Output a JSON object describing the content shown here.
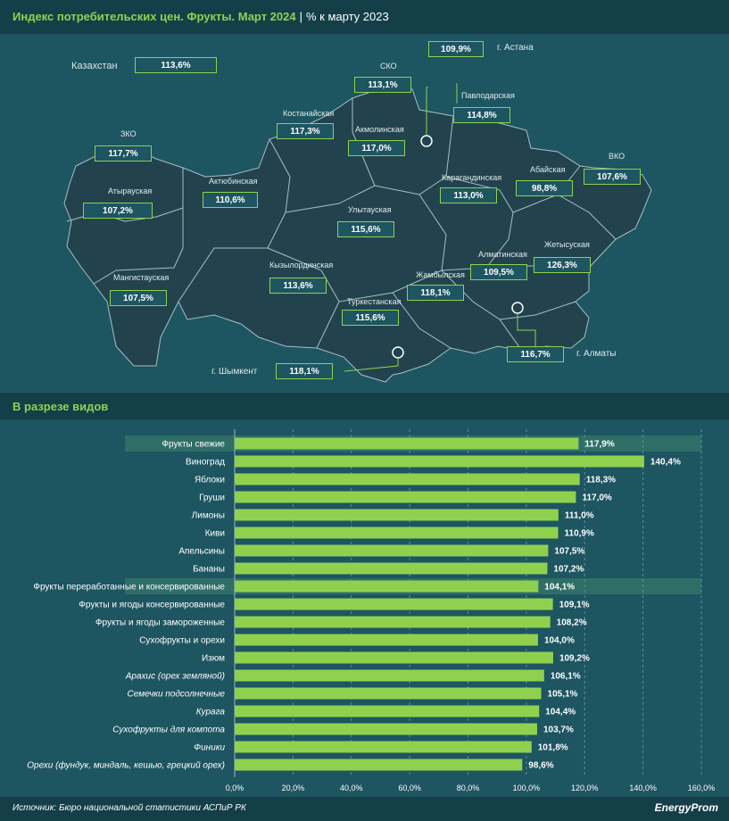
{
  "header": {
    "title": "Индекс потребительских цен. Фрукты. Март 2024",
    "separator": "|",
    "subtitle": "% к марту 2023"
  },
  "map": {
    "country_label": "Казахстан",
    "country_value": "113,6%",
    "regions": [
      {
        "name": "ЗКО",
        "value": "117,7%"
      },
      {
        "name": "Атырауская",
        "value": "107,2%"
      },
      {
        "name": "Мангистауская",
        "value": "107,5%"
      },
      {
        "name": "Актюбинская",
        "value": "110,6%"
      },
      {
        "name": "Костанайская",
        "value": "117,3%"
      },
      {
        "name": "СКО",
        "value": "113,1%"
      },
      {
        "name": "Акмолинская",
        "value": "117,0%"
      },
      {
        "name": "Павлодарская",
        "value": "114,8%"
      },
      {
        "name": "Карагандинская",
        "value": "113,0%"
      },
      {
        "name": "Улытауская",
        "value": "115,6%"
      },
      {
        "name": "Кызылординская",
        "value": "113,6%"
      },
      {
        "name": "Туркестанская",
        "value": "115,6%"
      },
      {
        "name": "Жамбылская",
        "value": "118,1%"
      },
      {
        "name": "Алматинская",
        "value": "109,5%"
      },
      {
        "name": "Жетысуская",
        "value": "126,3%"
      },
      {
        "name": "Абайская",
        "value": "98,8%"
      },
      {
        "name": "ВКО",
        "value": "107,6%"
      }
    ],
    "cities": [
      {
        "name": "г. Астана",
        "value": "109,9%"
      },
      {
        "name": "г. Алматы",
        "value": "116,7%"
      },
      {
        "name": "г. Шымкент",
        "value": "118,1%"
      }
    ]
  },
  "section": {
    "title": "В разрезе видов"
  },
  "chart_data": {
    "type": "bar",
    "orientation": "horizontal",
    "categories": [
      "Фрукты свежие",
      "Виноград",
      "Яблоки",
      "Груши",
      "Лимоны",
      "Киви",
      "Апельсины",
      "Бананы",
      "Фрукты переработанные и консервированные",
      "Фрукты и ягоды консервированные",
      "Фрукты и ягоды замороженные",
      "Сухофрукты и орехи",
      "Изюм",
      "Арахис (орех земляной)",
      "Семечки подсолнечные",
      "Курага",
      "Сухофрукты для компота",
      "Финики",
      "Орехи (фундук, миндаль, кешью, грецкий орех)"
    ],
    "values": [
      117.9,
      140.4,
      118.3,
      117.0,
      111.0,
      110.9,
      107.5,
      107.2,
      104.1,
      109.1,
      108.2,
      104.0,
      109.2,
      106.1,
      105.1,
      104.4,
      103.7,
      101.8,
      98.6
    ],
    "value_labels": [
      "117,9%",
      "140,4%",
      "118,3%",
      "117,0%",
      "111,0%",
      "110,9%",
      "107,5%",
      "107,2%",
      "104,1%",
      "109,1%",
      "108,2%",
      "104,0%",
      "109,2%",
      "106,1%",
      "105,1%",
      "104,4%",
      "103,7%",
      "101,8%",
      "98,6%"
    ],
    "highlighted": [
      0,
      8
    ],
    "italic": [
      13,
      14,
      15,
      16,
      17,
      18
    ],
    "xlim": [
      0,
      160
    ],
    "xticks": [
      0,
      20,
      40,
      60,
      80,
      100,
      120,
      140,
      160
    ],
    "xtick_labels": [
      "0,0%",
      "20,0%",
      "40,0%",
      "60,0%",
      "80,0%",
      "100,0%",
      "120,0%",
      "140,0%",
      "160,0%"
    ],
    "title": "В разрезе видов",
    "xlabel": "",
    "ylabel": ""
  },
  "footer": {
    "source": "Источник: Бюро национальной статистики АСПиР РК",
    "logo": "EnergyProm"
  },
  "colors": {
    "background": "#1d5561",
    "header_band": "#143f49",
    "accent": "#8fd14f",
    "map_fill": "#22434e",
    "highlight_row": "#2f6e67"
  }
}
